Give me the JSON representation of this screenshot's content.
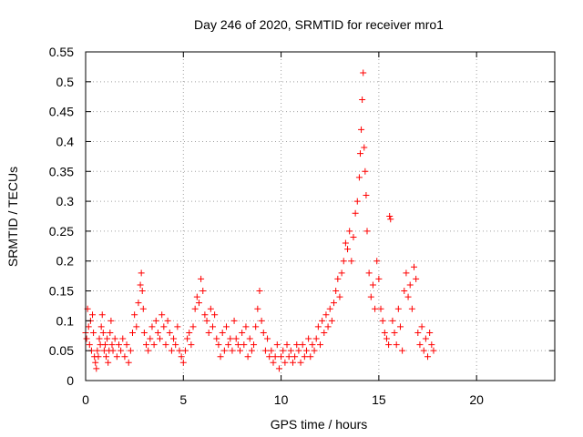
{
  "chart_data": {
    "type": "scatter",
    "title": "Day 246 of 2020, SRMTID for receiver mro1",
    "xlabel": "GPS time / hours",
    "ylabel": "SRMTID / TECUs",
    "xlim": [
      0,
      24
    ],
    "ylim": [
      0,
      0.55
    ],
    "grid": true,
    "marker": "+",
    "marker_color": "#ff0000",
    "x_ticks": [
      {
        "value": 0,
        "label": "0"
      },
      {
        "value": 5,
        "label": "5"
      },
      {
        "value": 10,
        "label": "10"
      },
      {
        "value": 15,
        "label": "15"
      },
      {
        "value": 20,
        "label": "20"
      }
    ],
    "y_ticks": [
      {
        "value": 0,
        "label": "0"
      },
      {
        "value": 0.05,
        "label": "0.05"
      },
      {
        "value": 0.1,
        "label": "0.1"
      },
      {
        "value": 0.15,
        "label": "0.15"
      },
      {
        "value": 0.2,
        "label": "0.2"
      },
      {
        "value": 0.25,
        "label": "0.25"
      },
      {
        "value": 0.3,
        "label": "0.3"
      },
      {
        "value": 0.35,
        "label": "0.35"
      },
      {
        "value": 0.4,
        "label": "0.4"
      },
      {
        "value": 0.45,
        "label": "0.45"
      },
      {
        "value": 0.5,
        "label": "0.5"
      },
      {
        "value": 0.55,
        "label": "0.55"
      }
    ],
    "series": [
      {
        "name": "SRMTID",
        "points": [
          [
            0.0,
            0.08
          ],
          [
            0.05,
            0.07
          ],
          [
            0.1,
            0.12
          ],
          [
            0.15,
            0.09
          ],
          [
            0.2,
            0.06
          ],
          [
            0.25,
            0.1
          ],
          [
            0.3,
            0.05
          ],
          [
            0.35,
            0.11
          ],
          [
            0.4,
            0.08
          ],
          [
            0.45,
            0.04
          ],
          [
            0.5,
            0.03
          ],
          [
            0.55,
            0.02
          ],
          [
            0.6,
            0.05
          ],
          [
            0.65,
            0.04
          ],
          [
            0.7,
            0.07
          ],
          [
            0.75,
            0.06
          ],
          [
            0.8,
            0.09
          ],
          [
            0.85,
            0.11
          ],
          [
            0.9,
            0.08
          ],
          [
            0.95,
            0.05
          ],
          [
            1.0,
            0.06
          ],
          [
            1.05,
            0.04
          ],
          [
            1.1,
            0.07
          ],
          [
            1.15,
            0.03
          ],
          [
            1.2,
            0.05
          ],
          [
            1.25,
            0.08
          ],
          [
            1.3,
            0.1
          ],
          [
            1.35,
            0.06
          ],
          [
            1.4,
            0.05
          ],
          [
            1.5,
            0.07
          ],
          [
            1.6,
            0.04
          ],
          [
            1.7,
            0.06
          ],
          [
            1.8,
            0.05
          ],
          [
            1.9,
            0.07
          ],
          [
            2.0,
            0.04
          ],
          [
            2.1,
            0.06
          ],
          [
            2.2,
            0.03
          ],
          [
            2.3,
            0.05
          ],
          [
            2.4,
            0.08
          ],
          [
            2.5,
            0.11
          ],
          [
            2.6,
            0.09
          ],
          [
            2.7,
            0.13
          ],
          [
            2.8,
            0.16
          ],
          [
            2.85,
            0.18
          ],
          [
            2.9,
            0.15
          ],
          [
            2.95,
            0.12
          ],
          [
            3.0,
            0.08
          ],
          [
            3.1,
            0.06
          ],
          [
            3.2,
            0.05
          ],
          [
            3.3,
            0.07
          ],
          [
            3.4,
            0.09
          ],
          [
            3.5,
            0.06
          ],
          [
            3.6,
            0.1
          ],
          [
            3.7,
            0.08
          ],
          [
            3.8,
            0.07
          ],
          [
            3.9,
            0.11
          ],
          [
            4.0,
            0.09
          ],
          [
            4.1,
            0.06
          ],
          [
            4.2,
            0.1
          ],
          [
            4.3,
            0.08
          ],
          [
            4.4,
            0.05
          ],
          [
            4.5,
            0.07
          ],
          [
            4.6,
            0.06
          ],
          [
            4.7,
            0.09
          ],
          [
            4.8,
            0.05
          ],
          [
            4.9,
            0.04
          ],
          [
            5.0,
            0.03
          ],
          [
            5.1,
            0.05
          ],
          [
            5.2,
            0.07
          ],
          [
            5.3,
            0.08
          ],
          [
            5.4,
            0.06
          ],
          [
            5.5,
            0.09
          ],
          [
            5.6,
            0.12
          ],
          [
            5.7,
            0.14
          ],
          [
            5.8,
            0.13
          ],
          [
            5.9,
            0.17
          ],
          [
            6.0,
            0.15
          ],
          [
            6.1,
            0.11
          ],
          [
            6.2,
            0.1
          ],
          [
            6.3,
            0.08
          ],
          [
            6.4,
            0.12
          ],
          [
            6.5,
            0.09
          ],
          [
            6.6,
            0.11
          ],
          [
            6.7,
            0.07
          ],
          [
            6.8,
            0.06
          ],
          [
            6.9,
            0.04
          ],
          [
            7.0,
            0.08
          ],
          [
            7.1,
            0.05
          ],
          [
            7.2,
            0.09
          ],
          [
            7.3,
            0.06
          ],
          [
            7.4,
            0.07
          ],
          [
            7.5,
            0.05
          ],
          [
            7.6,
            0.1
          ],
          [
            7.7,
            0.07
          ],
          [
            7.8,
            0.06
          ],
          [
            7.9,
            0.05
          ],
          [
            8.0,
            0.08
          ],
          [
            8.1,
            0.06
          ],
          [
            8.2,
            0.09
          ],
          [
            8.3,
            0.04
          ],
          [
            8.4,
            0.07
          ],
          [
            8.5,
            0.05
          ],
          [
            8.6,
            0.06
          ],
          [
            8.7,
            0.09
          ],
          [
            8.8,
            0.12
          ],
          [
            8.9,
            0.15
          ],
          [
            9.0,
            0.1
          ],
          [
            9.1,
            0.08
          ],
          [
            9.2,
            0.05
          ],
          [
            9.3,
            0.07
          ],
          [
            9.4,
            0.04
          ],
          [
            9.5,
            0.05
          ],
          [
            9.6,
            0.03
          ],
          [
            9.7,
            0.04
          ],
          [
            9.8,
            0.06
          ],
          [
            9.9,
            0.02
          ],
          [
            10.0,
            0.04
          ],
          [
            10.1,
            0.05
          ],
          [
            10.2,
            0.03
          ],
          [
            10.3,
            0.06
          ],
          [
            10.4,
            0.04
          ],
          [
            10.5,
            0.05
          ],
          [
            10.6,
            0.03
          ],
          [
            10.7,
            0.04
          ],
          [
            10.8,
            0.06
          ],
          [
            10.9,
            0.05
          ],
          [
            11.0,
            0.03
          ],
          [
            11.1,
            0.06
          ],
          [
            11.2,
            0.04
          ],
          [
            11.3,
            0.05
          ],
          [
            11.4,
            0.07
          ],
          [
            11.5,
            0.04
          ],
          [
            11.6,
            0.06
          ],
          [
            11.7,
            0.05
          ],
          [
            11.8,
            0.07
          ],
          [
            11.9,
            0.09
          ],
          [
            12.0,
            0.06
          ],
          [
            12.1,
            0.1
          ],
          [
            12.2,
            0.08
          ],
          [
            12.3,
            0.11
          ],
          [
            12.4,
            0.09
          ],
          [
            12.5,
            0.12
          ],
          [
            12.6,
            0.1
          ],
          [
            12.7,
            0.13
          ],
          [
            12.8,
            0.15
          ],
          [
            12.9,
            0.17
          ],
          [
            13.0,
            0.14
          ],
          [
            13.1,
            0.18
          ],
          [
            13.2,
            0.2
          ],
          [
            13.3,
            0.23
          ],
          [
            13.4,
            0.22
          ],
          [
            13.5,
            0.25
          ],
          [
            13.6,
            0.2
          ],
          [
            13.7,
            0.24
          ],
          [
            13.8,
            0.28
          ],
          [
            13.9,
            0.3
          ],
          [
            14.0,
            0.34
          ],
          [
            14.05,
            0.38
          ],
          [
            14.1,
            0.42
          ],
          [
            14.15,
            0.47
          ],
          [
            14.2,
            0.515
          ],
          [
            14.25,
            0.39
          ],
          [
            14.3,
            0.35
          ],
          [
            14.35,
            0.31
          ],
          [
            14.4,
            0.25
          ],
          [
            14.5,
            0.18
          ],
          [
            14.6,
            0.14
          ],
          [
            14.7,
            0.16
          ],
          [
            14.8,
            0.12
          ],
          [
            14.9,
            0.2
          ],
          [
            15.0,
            0.17
          ],
          [
            15.1,
            0.12
          ],
          [
            15.2,
            0.1
          ],
          [
            15.3,
            0.08
          ],
          [
            15.4,
            0.07
          ],
          [
            15.5,
            0.06
          ],
          [
            15.55,
            0.275
          ],
          [
            15.6,
            0.27
          ],
          [
            15.7,
            0.1
          ],
          [
            15.8,
            0.08
          ],
          [
            15.9,
            0.06
          ],
          [
            16.0,
            0.12
          ],
          [
            16.1,
            0.09
          ],
          [
            16.2,
            0.05
          ],
          [
            16.3,
            0.15
          ],
          [
            16.4,
            0.18
          ],
          [
            16.5,
            0.14
          ],
          [
            16.6,
            0.16
          ],
          [
            16.7,
            0.12
          ],
          [
            16.8,
            0.19
          ],
          [
            16.9,
            0.17
          ],
          [
            17.0,
            0.08
          ],
          [
            17.1,
            0.06
          ],
          [
            17.2,
            0.09
          ],
          [
            17.3,
            0.05
          ],
          [
            17.4,
            0.07
          ],
          [
            17.5,
            0.04
          ],
          [
            17.6,
            0.08
          ],
          [
            17.7,
            0.06
          ],
          [
            17.8,
            0.05
          ]
        ]
      }
    ]
  }
}
